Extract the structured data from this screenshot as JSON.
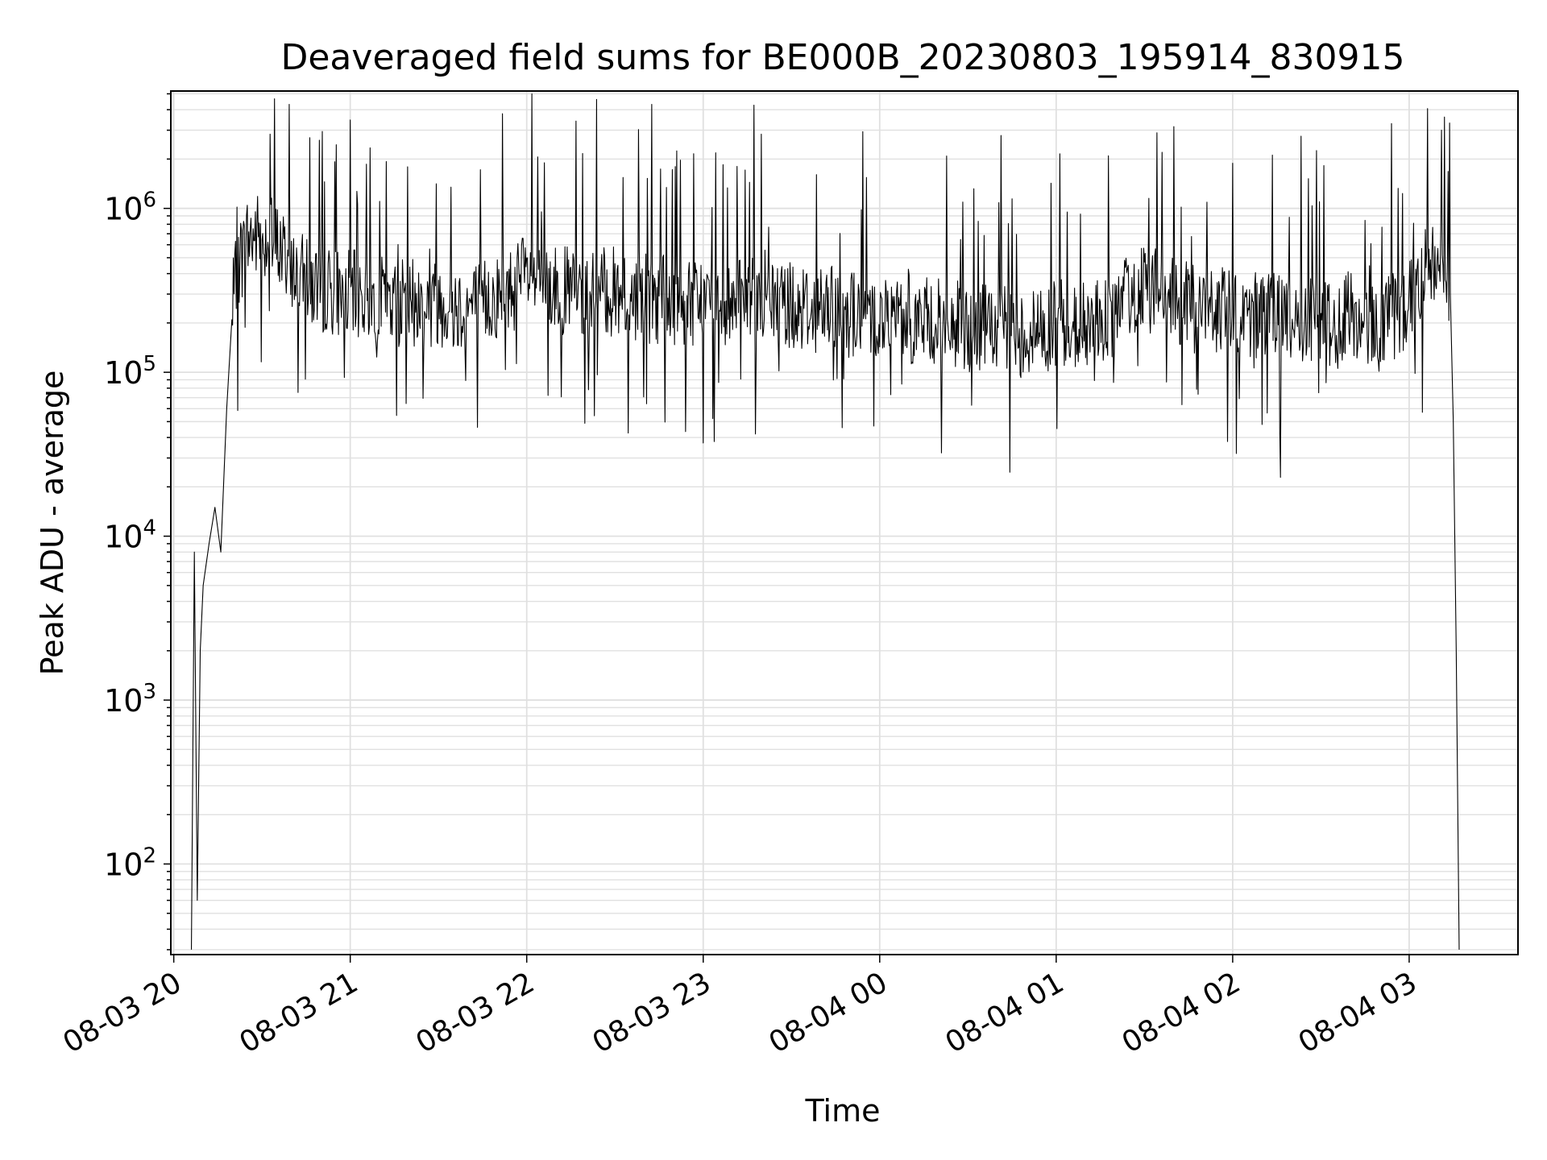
{
  "chart_data": {
    "type": "line",
    "title": "Deaveraged field sums for BE000B_20230803_195914_830915",
    "xlabel": "Time",
    "ylabel": "Peak ADU - average",
    "yscale": "log",
    "xlim": [
      "2023-08-03 19:59",
      "2023-08-04 03:37"
    ],
    "ylim": [
      28,
      5200000
    ],
    "grid": true,
    "x_ticks": [
      "08-03 20",
      "08-03 21",
      "08-03 22",
      "08-03 23",
      "08-04 00",
      "08-04 01",
      "08-04 02",
      "08-04 03"
    ],
    "y_ticks": [
      {
        "base": "10",
        "exp": "2"
      },
      {
        "base": "10",
        "exp": "3"
      },
      {
        "base": "10",
        "exp": "4"
      },
      {
        "base": "10",
        "exp": "5"
      },
      {
        "base": "10",
        "exp": "6"
      }
    ],
    "line_color": "#000000",
    "series": [
      {
        "time": [
          "2023-08-03 20:06",
          "2023-08-03 20:07",
          "2023-08-03 20:08",
          "2023-08-03 20:09",
          "2023-08-03 20:10",
          "2023-08-03 20:12",
          "2023-08-03 20:14",
          "2023-08-03 20:16",
          "2023-08-03 20:18",
          "2023-08-03 20:20",
          "2023-08-03 20:22",
          "2023-08-03 20:25",
          "2023-08-03 20:30",
          "2023-08-03 20:35",
          "2023-08-03 20:40",
          "2023-08-03 20:45",
          "2023-08-03 20:50",
          "2023-08-03 21:00",
          "2023-08-03 21:10",
          "2023-08-03 21:20",
          "2023-08-03 21:30",
          "2023-08-03 21:40",
          "2023-08-03 21:50",
          "2023-08-03 22:00",
          "2023-08-03 22:10",
          "2023-08-03 22:20",
          "2023-08-03 22:30",
          "2023-08-03 22:40",
          "2023-08-03 22:50",
          "2023-08-03 23:00",
          "2023-08-03 23:10",
          "2023-08-03 23:20",
          "2023-08-03 23:30",
          "2023-08-03 23:40",
          "2023-08-03 23:50",
          "2023-08-04 00:00",
          "2023-08-04 00:10",
          "2023-08-04 00:20",
          "2023-08-04 00:30",
          "2023-08-04 00:40",
          "2023-08-04 00:50",
          "2023-08-04 01:00",
          "2023-08-04 01:10",
          "2023-08-04 01:20",
          "2023-08-04 01:30",
          "2023-08-04 01:40",
          "2023-08-04 01:50",
          "2023-08-04 02:00",
          "2023-08-04 02:10",
          "2023-08-04 02:20",
          "2023-08-04 02:30",
          "2023-08-04 02:40",
          "2023-08-04 02:50",
          "2023-08-04 03:00",
          "2023-08-04 03:05",
          "2023-08-04 03:08",
          "2023-08-04 03:10",
          "2023-08-04 03:12",
          "2023-08-04 03:14",
          "2023-08-04 03:15",
          "2023-08-04 03:16",
          "2023-08-04 03:17"
        ],
        "values": [
          30,
          8000,
          60,
          2000,
          5000,
          9000,
          15000,
          8000,
          60000,
          250000,
          450000,
          650000,
          700000,
          600000,
          450000,
          350000,
          330000,
          300000,
          280000,
          260000,
          270000,
          250000,
          290000,
          380000,
          320000,
          300000,
          310000,
          290000,
          270000,
          260000,
          280000,
          300000,
          260000,
          240000,
          230000,
          220000,
          210000,
          200000,
          190000,
          180000,
          170000,
          200000,
          190000,
          220000,
          380000,
          260000,
          240000,
          230000,
          220000,
          210000,
          200000,
          220000,
          190000,
          260000,
          400000,
          500000,
          550000,
          450000,
          300000,
          50000,
          2000,
          30
        ]
      }
    ]
  }
}
